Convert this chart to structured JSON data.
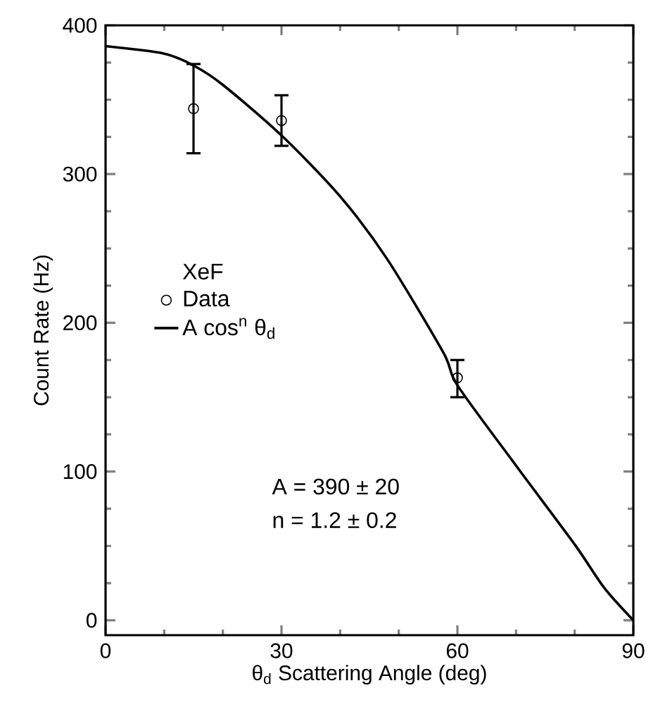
{
  "chart_data": {
    "type": "scatter",
    "xlabel": "θ$_{d}$ Scattering Angle (deg)",
    "ylabel": "Count Rate (Hz)",
    "legend_title": "XeF",
    "xlim": [
      0,
      90
    ],
    "ylim": [
      -10,
      400
    ],
    "xticks": [
      0,
      30,
      60,
      90
    ],
    "yticks": [
      0,
      100,
      200,
      300,
      400
    ],
    "series": [
      {
        "name": "Data",
        "marker": "circle",
        "color": "#000000",
        "x": [
          15,
          30,
          60
        ],
        "values": [
          344,
          336,
          163
        ],
        "errors": [
          [
            314,
            374
          ],
          [
            319,
            353
          ],
          [
            150,
            175
          ]
        ]
      },
      {
        "name": "A cos$^{n}$ θ$_{d}$",
        "type": "line",
        "marker": "none",
        "line_style": "solid",
        "color": "#000000",
        "x": [
          0,
          10,
          15,
          20,
          30,
          40,
          48,
          57.6,
          60,
          70,
          80,
          85,
          90
        ],
        "values": [
          386,
          381,
          373,
          360,
          326,
          285,
          243,
          180,
          158,
          104,
          51,
          22,
          0
        ]
      }
    ],
    "legend": "left",
    "grid": false,
    "annotations": [
      "A = 390 ± 20",
      "n = 1.2 ± 0.2"
    ]
  }
}
